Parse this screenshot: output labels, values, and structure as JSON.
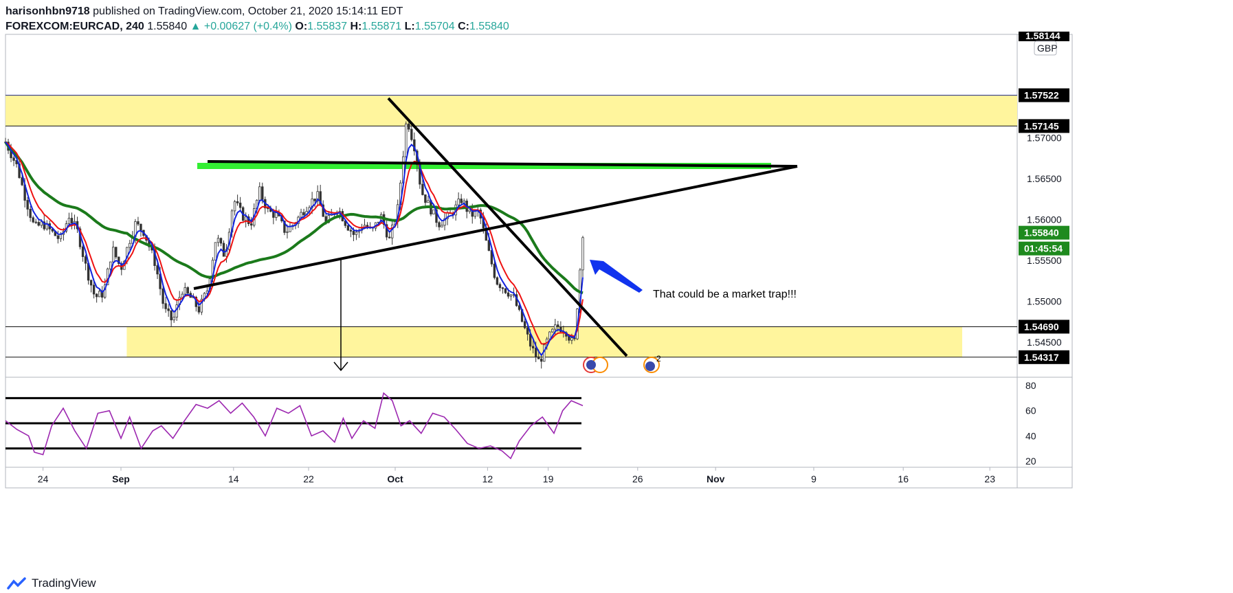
{
  "header": {
    "author": "harisonhbn9718",
    "published": "published on TradingView.com, October 21, 2020 15:14:11 EDT",
    "symbol": "FOREXCOM:EURCAD, 240",
    "last": "1.55840",
    "change": "▲ +0.00627 (+0.4%)",
    "o_label": "O:",
    "o": "1.55837",
    "h_label": "H:",
    "h": "1.55871",
    "l_label": "L:",
    "l": "1.55704",
    "c_label": "C:",
    "c": "1.55840"
  },
  "price_axis": {
    "ticks": [
      "1.57000",
      "1.56500",
      "1.56000",
      "1.55500",
      "1.55000",
      "1.54500"
    ],
    "top_tag": "1.58144",
    "currency": "GBP",
    "tags": [
      {
        "value": "1.57522",
        "kind": "level"
      },
      {
        "value": "1.57145",
        "kind": "level"
      },
      {
        "value": "1.55840",
        "kind": "last"
      },
      {
        "value": "01:45:54",
        "kind": "countdown"
      },
      {
        "value": "1.54690",
        "kind": "level"
      },
      {
        "value": "1.54317",
        "kind": "level"
      }
    ]
  },
  "rsi_axis": {
    "ticks": [
      "80",
      "60",
      "40",
      "20"
    ]
  },
  "time_axis": {
    "ticks": [
      "24",
      "Sep",
      "14",
      "22",
      "Oct",
      "12",
      "19",
      "26",
      "Nov",
      "9",
      "16",
      "23"
    ]
  },
  "annotation": "That could be a market trap!!!",
  "event_badge": "2",
  "footer": {
    "brand": "TradingView"
  },
  "colors": {
    "zone": "#fff59d",
    "green_zone": "#33ee33",
    "ma_green": "#1b7a1b",
    "ema_red": "#ee1111",
    "ema_blue": "#1122dd",
    "arrow_blue": "#1133ee",
    "rsi": "#9c27b0",
    "last_tag": "#1e8a1e",
    "candle": "#333333"
  },
  "chart_data": {
    "type": "candlestick",
    "symbol": "FOREXCOM:EURCAD",
    "timeframe": "240",
    "x_ticks": [
      "24",
      "Sep",
      "14",
      "22",
      "Oct",
      "12",
      "19",
      "26",
      "Nov",
      "9",
      "16",
      "23"
    ],
    "y_ticks": [
      1.57,
      1.565,
      1.56,
      1.555,
      1.55,
      1.545
    ],
    "ylim": [
      1.5408,
      1.5825
    ],
    "last": 1.5584,
    "open": 1.55837,
    "high": 1.55871,
    "low": 1.55704,
    "close": 1.5584,
    "zones": [
      {
        "from": 1.57145,
        "to": 1.57522
      },
      {
        "from": 1.54317,
        "to": 1.5469
      }
    ],
    "close_path": [
      [
        0.0,
        1.5695
      ],
      [
        0.02,
        1.5665
      ],
      [
        0.035,
        1.5625
      ],
      [
        0.05,
        1.559
      ],
      [
        0.065,
        1.5595
      ],
      [
        0.08,
        1.5585
      ],
      [
        0.095,
        1.5575
      ],
      [
        0.11,
        1.5605
      ],
      [
        0.125,
        1.5585
      ],
      [
        0.14,
        1.554
      ],
      [
        0.155,
        1.5505
      ],
      [
        0.17,
        1.551
      ],
      [
        0.185,
        1.5565
      ],
      [
        0.2,
        1.554
      ],
      [
        0.215,
        1.5575
      ],
      [
        0.225,
        1.5595
      ],
      [
        0.24,
        1.5585
      ],
      [
        0.26,
        1.5545
      ],
      [
        0.275,
        1.549
      ],
      [
        0.29,
        1.5475
      ],
      [
        0.305,
        1.5515
      ],
      [
        0.32,
        1.5505
      ],
      [
        0.335,
        1.549
      ],
      [
        0.35,
        1.5515
      ],
      [
        0.365,
        1.558
      ],
      [
        0.38,
        1.5555
      ],
      [
        0.395,
        1.5625
      ],
      [
        0.41,
        1.5605
      ],
      [
        0.425,
        1.5595
      ],
      [
        0.44,
        1.5635
      ],
      [
        0.455,
        1.561
      ],
      [
        0.47,
        1.5605
      ],
      [
        0.485,
        1.5585
      ],
      [
        0.5,
        1.5595
      ],
      [
        0.52,
        1.5615
      ],
      [
        0.54,
        1.563
      ],
      [
        0.555,
        1.5595
      ],
      [
        0.575,
        1.5615
      ],
      [
        0.59,
        1.5595
      ],
      [
        0.605,
        1.558
      ],
      [
        0.62,
        1.5595
      ],
      [
        0.635,
        1.5585
      ],
      [
        0.65,
        1.5605
      ],
      [
        0.665,
        1.5575
      ],
      [
        0.68,
        1.5615
      ],
      [
        0.695,
        1.5725
      ],
      [
        0.71,
        1.5685
      ],
      [
        0.72,
        1.5635
      ],
      [
        0.735,
        1.5615
      ],
      [
        0.75,
        1.5595
      ],
      [
        0.77,
        1.5605
      ],
      [
        0.79,
        1.5625
      ],
      [
        0.805,
        1.5605
      ],
      [
        0.82,
        1.561
      ],
      [
        0.835,
        1.5565
      ],
      [
        0.85,
        1.5525
      ],
      [
        0.865,
        1.5515
      ],
      [
        0.88,
        1.5505
      ],
      [
        0.895,
        1.5475
      ],
      [
        0.91,
        1.5445
      ],
      [
        0.925,
        1.5425
      ],
      [
        0.94,
        1.5455
      ],
      [
        0.955,
        1.547
      ],
      [
        0.97,
        1.5465
      ],
      [
        0.985,
        1.5445
      ],
      [
        1.0,
        1.5584
      ]
    ],
    "rsi": {
      "ticks": [
        80,
        60,
        40,
        20
      ],
      "ylim": [
        15,
        85
      ],
      "path": [
        [
          0.0,
          52
        ],
        [
          0.02,
          45
        ],
        [
          0.04,
          40
        ],
        [
          0.05,
          27
        ],
        [
          0.065,
          25
        ],
        [
          0.08,
          48
        ],
        [
          0.1,
          62
        ],
        [
          0.12,
          44
        ],
        [
          0.14,
          30
        ],
        [
          0.16,
          58
        ],
        [
          0.18,
          60
        ],
        [
          0.2,
          38
        ],
        [
          0.215,
          55
        ],
        [
          0.235,
          30
        ],
        [
          0.255,
          44
        ],
        [
          0.27,
          48
        ],
        [
          0.29,
          38
        ],
        [
          0.31,
          52
        ],
        [
          0.33,
          65
        ],
        [
          0.35,
          62
        ],
        [
          0.37,
          68
        ],
        [
          0.39,
          58
        ],
        [
          0.41,
          66
        ],
        [
          0.43,
          55
        ],
        [
          0.45,
          40
        ],
        [
          0.47,
          62
        ],
        [
          0.49,
          58
        ],
        [
          0.51,
          64
        ],
        [
          0.53,
          40
        ],
        [
          0.55,
          44
        ],
        [
          0.57,
          35
        ],
        [
          0.585,
          54
        ],
        [
          0.6,
          38
        ],
        [
          0.62,
          52
        ],
        [
          0.64,
          46
        ],
        [
          0.655,
          74
        ],
        [
          0.67,
          68
        ],
        [
          0.685,
          48
        ],
        [
          0.7,
          52
        ],
        [
          0.72,
          42
        ],
        [
          0.74,
          58
        ],
        [
          0.76,
          55
        ],
        [
          0.78,
          45
        ],
        [
          0.8,
          34
        ],
        [
          0.82,
          30
        ],
        [
          0.84,
          32
        ],
        [
          0.86,
          28
        ],
        [
          0.875,
          22
        ],
        [
          0.89,
          36
        ],
        [
          0.91,
          48
        ],
        [
          0.93,
          55
        ],
        [
          0.95,
          42
        ],
        [
          0.965,
          60
        ],
        [
          0.98,
          68
        ],
        [
          1.0,
          64
        ]
      ]
    }
  }
}
